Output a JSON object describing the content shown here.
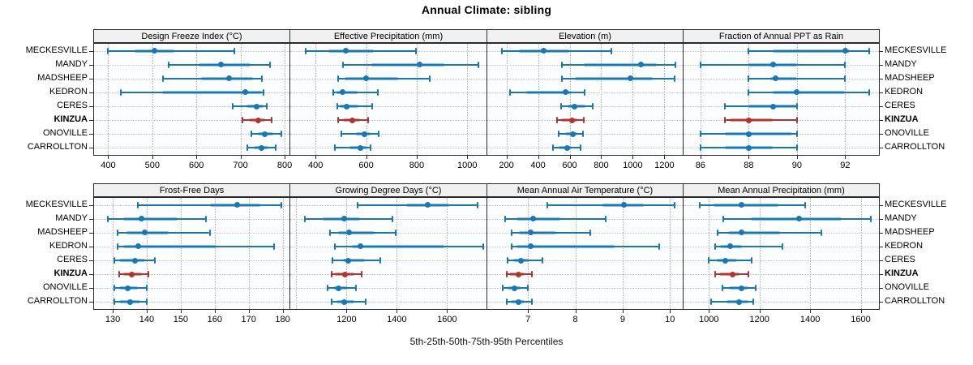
{
  "title": "Annual Climate: sibling",
  "caption": "5th-25th-50th-75th-95th Percentiles",
  "highlight_site": "KINZUA",
  "colors": {
    "blue": "#1878b4",
    "blue_light": "#8cc0e0",
    "red": "#b23430",
    "red_light": "#d99b95",
    "strip_bg": "#f0f0f0",
    "panel_border": "#2b2b2b",
    "grid": "#b4b4b4"
  },
  "chart_data": {
    "type": "dotplot",
    "subtype": "percentile-ranges",
    "percentiles": [
      5,
      25,
      50,
      75,
      95
    ],
    "legend_position": "none",
    "grid": "dotted",
    "rows": [
      "MECKESVILLE",
      "MANDY",
      "MADSHEEP",
      "KEDRON",
      "CERES",
      "KINZUA",
      "ONOVILLE",
      "CARROLLTON"
    ],
    "panels": [
      {
        "title": "Design Freeze Index (°C)",
        "band": 0,
        "col": 0,
        "xlim": [
          368,
          811
        ],
        "ticks": [
          400,
          500,
          600,
          700,
          800
        ],
        "values": [
          [
            400,
            460,
            505,
            550,
            686
          ],
          [
            538,
            606,
            655,
            722,
            766
          ],
          [
            525,
            610,
            674,
            729,
            749
          ],
          [
            428,
            523,
            711,
            748,
            753
          ],
          [
            683,
            713,
            737,
            752,
            760
          ],
          [
            705,
            720,
            740,
            755,
            770
          ],
          [
            725,
            740,
            755,
            775,
            793
          ],
          [
            715,
            730,
            748,
            763,
            780
          ]
        ]
      },
      {
        "title": "Effective Precipitation (mm)",
        "band": 0,
        "col": 1,
        "xlim": [
          300,
          1076
        ],
        "ticks": [
          400,
          600,
          800,
          1000
        ],
        "values": [
          [
            360,
            450,
            520,
            630,
            797
          ],
          [
            508,
            620,
            813,
            909,
            1043
          ],
          [
            488,
            515,
            600,
            727,
            850
          ],
          [
            470,
            482,
            508,
            566,
            647
          ],
          [
            486,
            496,
            523,
            571,
            625
          ],
          [
            490,
            508,
            544,
            576,
            609
          ],
          [
            502,
            560,
            592,
            619,
            651
          ],
          [
            475,
            534,
            576,
            602,
            619
          ]
        ]
      },
      {
        "title": "Elevation (m)",
        "band": 0,
        "col": 2,
        "xlim": [
          79,
          1316
        ],
        "ticks": [
          200,
          400,
          600,
          800,
          1000,
          1200
        ],
        "values": [
          [
            170,
            280,
            437,
            596,
            865
          ],
          [
            553,
            690,
            1053,
            1150,
            1268
          ],
          [
            553,
            633,
            983,
            1125,
            1263
          ],
          [
            224,
            323,
            574,
            613,
            695
          ],
          [
            545,
            587,
            633,
            698,
            745
          ],
          [
            519,
            545,
            613,
            647,
            690
          ],
          [
            531,
            570,
            621,
            647,
            685
          ],
          [
            494,
            531,
            587,
            613,
            668
          ]
        ]
      },
      {
        "title": "Fraction of Annual PPT as Rain",
        "band": 0,
        "col": 3,
        "xlim": [
          85.3,
          93.4
        ],
        "ticks": [
          86,
          88,
          90,
          92
        ],
        "values": [
          [
            88,
            89,
            92,
            92.2,
            93
          ],
          [
            86,
            88,
            89,
            90,
            92
          ],
          [
            88,
            88.9,
            89.1,
            90,
            92
          ],
          [
            88,
            89,
            90,
            92,
            93
          ],
          [
            87,
            88,
            89,
            90,
            90
          ],
          [
            87,
            87.2,
            88,
            89,
            90
          ],
          [
            86,
            87,
            88,
            89.8,
            90
          ],
          [
            86,
            87,
            88,
            89,
            90
          ]
        ]
      },
      {
        "title": "Frost-Free Days",
        "band": 1,
        "col": 0,
        "xlim": [
          124.5,
          182
        ],
        "ticks": [
          130,
          140,
          150,
          160,
          170,
          180
        ],
        "values": [
          [
            137.5,
            158.5,
            166.5,
            173.5,
            179.5
          ],
          [
            128.5,
            133,
            138.5,
            149,
            157.5
          ],
          [
            131.5,
            134,
            139.5,
            146.5,
            158.5
          ],
          [
            131.5,
            133,
            137.5,
            160.5,
            177.5
          ],
          [
            130.5,
            132,
            136.5,
            139.5,
            142.5
          ],
          [
            132,
            133,
            135.5,
            138.5,
            140.5
          ],
          [
            130.5,
            132,
            134.5,
            137.5,
            140
          ],
          [
            130.5,
            132,
            135,
            138,
            140
          ]
        ]
      },
      {
        "title": "Growing Degree Days (°C)",
        "band": 1,
        "col": 1,
        "xlim": [
          976,
          1757
        ],
        "ticks": [
          1200,
          1400,
          1600
        ],
        "grid_only": [
          1000
        ],
        "values": [
          [
            1243,
            1437,
            1523,
            1609,
            1721
          ],
          [
            1035,
            1106,
            1189,
            1254,
            1383
          ],
          [
            1135,
            1168,
            1209,
            1313,
            1394
          ],
          [
            1154,
            1220,
            1254,
            1588,
            1744
          ],
          [
            1143,
            1186,
            1208,
            1272,
            1335
          ],
          [
            1139,
            1155,
            1195,
            1232,
            1261
          ],
          [
            1125,
            1146,
            1168,
            1205,
            1238
          ],
          [
            1139,
            1160,
            1192,
            1232,
            1275
          ]
        ]
      },
      {
        "title": "Mean Annual Air Temperature (°C)",
        "band": 1,
        "col": 2,
        "xlim": [
          6.14,
          10.27
        ],
        "ticks": [
          7,
          8,
          9,
          10
        ],
        "values": [
          [
            7.4,
            8.57,
            9.02,
            9.45,
            10.1
          ],
          [
            6.52,
            6.76,
            7.11,
            7.69,
            8.64
          ],
          [
            6.66,
            6.8,
            7.06,
            7.59,
            8.31
          ],
          [
            6.66,
            6.76,
            7.05,
            8.83,
            9.78
          ],
          [
            6.57,
            6.68,
            6.85,
            7.02,
            7.3
          ],
          [
            6.55,
            6.61,
            6.8,
            6.93,
            7.09
          ],
          [
            6.47,
            6.56,
            6.71,
            6.84,
            7.0
          ],
          [
            6.55,
            6.64,
            6.8,
            6.93,
            7.09
          ]
        ]
      },
      {
        "title": "Mean Annual Precipitation (mm)",
        "band": 1,
        "col": 3,
        "xlim": [
          900,
          1672
        ],
        "ticks": [
          1000,
          1200,
          1400,
          1600
        ],
        "values": [
          [
            965,
            1018,
            1130,
            1275,
            1380
          ],
          [
            1058,
            1167,
            1356,
            1525,
            1640
          ],
          [
            1035,
            1077,
            1130,
            1280,
            1445
          ],
          [
            1025,
            1045,
            1085,
            1130,
            1290
          ],
          [
            1000,
            1030,
            1065,
            1110,
            1170
          ],
          [
            1025,
            1042,
            1095,
            1120,
            1155
          ],
          [
            1055,
            1080,
            1130,
            1156,
            1185
          ],
          [
            1010,
            1070,
            1120,
            1155,
            1177
          ]
        ]
      }
    ]
  }
}
